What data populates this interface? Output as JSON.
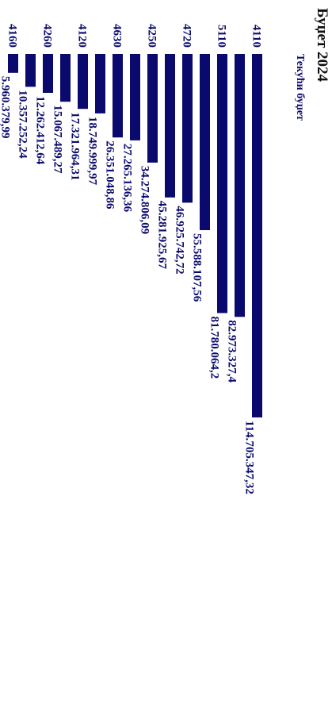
{
  "chart_data": {
    "type": "bar",
    "orientation": "horizontal",
    "title": "Буџет 2024",
    "series": [
      {
        "name": "Текући буџет",
        "values": [
          114705347.32,
          82973327.4,
          81780064.2,
          55588107.56,
          46925742.72,
          45281925.67,
          34274806.09,
          27265136.36,
          26351048.86,
          18749999.97,
          17321964.31,
          15067489.27,
          12262412.64,
          10357252.24,
          5960379.99
        ]
      }
    ],
    "categories": [
      "4110",
      "",
      "5110",
      "",
      "4720",
      "",
      "4250",
      "",
      "4630",
      "",
      "4120",
      "",
      "4260",
      "",
      "4160"
    ],
    "data_labels": [
      "114.705.347,32",
      "82.973.327,4",
      "81.780.064,2",
      "55.588.107,56",
      "46.925.742,72",
      "45.281.925,67",
      "34.274.806,09",
      "27.265.136,36",
      "26.351.048,86",
      "18.749.999,97",
      "17.321.964,31",
      "15.067.489,27",
      "12.262.412,64",
      "10.357.252,24",
      "5.960.379,99"
    ],
    "xlim": [
      0,
      114705347.32
    ],
    "grid": false,
    "legend": "none",
    "rotation": "90deg clockwise",
    "bar_color": "#0a0a6e",
    "text_color": "#0a0a6e"
  }
}
